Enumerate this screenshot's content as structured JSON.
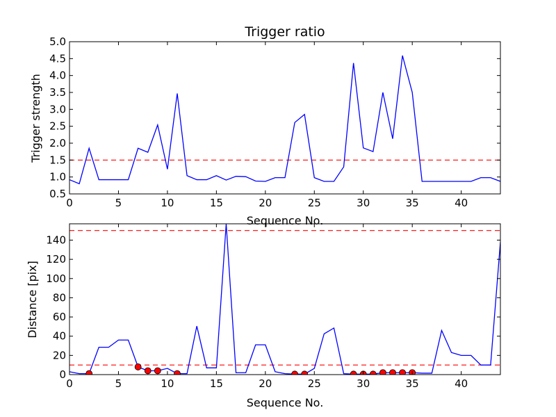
{
  "chart_data": [
    {
      "type": "line",
      "title": "Trigger ratio",
      "xlabel": "Sequence No.",
      "ylabel": "Trigger strength",
      "xlim": [
        0,
        44
      ],
      "ylim": [
        0.5,
        5.0
      ],
      "xticks": [
        "0",
        "5",
        "10",
        "15",
        "20",
        "25",
        "30",
        "35",
        "40"
      ],
      "yticks": [
        "0.5",
        "1.0",
        "1.5",
        "2.0",
        "2.5",
        "3.0",
        "3.5",
        "4.0",
        "4.5",
        "5.0"
      ],
      "grid": false,
      "series": [
        {
          "color": "#0000ff",
          "x": [
            0,
            1,
            2,
            3,
            4,
            5,
            6,
            7,
            8,
            9,
            10,
            11,
            12,
            13,
            14,
            15,
            16,
            17,
            18,
            19,
            20,
            21,
            22,
            23,
            24,
            25,
            26,
            27,
            28,
            29,
            30,
            31,
            32,
            33,
            34,
            35,
            36,
            37,
            38,
            39,
            40,
            41,
            42,
            43,
            44
          ],
          "values": [
            0.92,
            0.8,
            1.85,
            0.92,
            0.92,
            0.92,
            0.92,
            1.85,
            1.73,
            2.54,
            1.23,
            3.47,
            1.04,
            0.92,
            0.92,
            1.04,
            0.91,
            1.02,
            1.01,
            0.88,
            0.87,
            0.98,
            0.98,
            2.61,
            2.85,
            0.98,
            0.87,
            0.87,
            1.3,
            4.37,
            1.86,
            1.75,
            3.5,
            2.13,
            4.59,
            3.5,
            0.87,
            0.87,
            0.87,
            0.87,
            0.87,
            0.87,
            0.98,
            0.98,
            0.87
          ]
        }
      ],
      "threshold": {
        "value": 1.5,
        "color": "#ff0000",
        "style": "dashed"
      }
    },
    {
      "type": "line",
      "title": "",
      "xlabel": "Sequence No.",
      "ylabel": "Distance [pix]",
      "xlim": [
        0,
        44
      ],
      "ylim": [
        0,
        157
      ],
      "xticks": [
        "0",
        "5",
        "10",
        "15",
        "20",
        "25",
        "30",
        "35",
        "40"
      ],
      "yticks": [
        "0",
        "20",
        "40",
        "60",
        "80",
        "100",
        "120",
        "140"
      ],
      "grid": false,
      "series": [
        {
          "color": "#0000ff",
          "x": [
            0,
            1,
            2,
            3,
            4,
            5,
            6,
            7,
            8,
            9,
            10,
            11,
            12,
            13,
            14,
            15,
            16,
            17,
            18,
            19,
            20,
            21,
            22,
            23,
            24,
            25,
            26,
            27,
            28,
            29,
            30,
            31,
            32,
            33,
            34,
            35,
            36,
            37,
            38,
            39,
            40,
            41,
            42,
            43,
            44
          ],
          "values": [
            3,
            1,
            1,
            28.5,
            28.5,
            36,
            36,
            8,
            4,
            4,
            6.5,
            1,
            1,
            50.5,
            7,
            7,
            157,
            2,
            2,
            31,
            31,
            3,
            1,
            0.5,
            0.5,
            6.5,
            42.5,
            48.5,
            1,
            0.5,
            0.5,
            0.5,
            2,
            2,
            2,
            2,
            1.5,
            1.5,
            46,
            23,
            20,
            20,
            10,
            10,
            138
          ]
        }
      ],
      "markers": {
        "color": "#ff0000",
        "x": [
          2,
          7,
          8,
          9,
          11,
          23,
          24,
          29,
          30,
          31,
          32,
          33,
          34,
          35
        ],
        "values": [
          1,
          8,
          4,
          4,
          1,
          0.5,
          0.5,
          0.5,
          0.5,
          0.5,
          2,
          2,
          2,
          2
        ]
      },
      "thresholds": [
        {
          "value": 150,
          "color": "#ff0000",
          "style": "dashed"
        },
        {
          "value": 10,
          "color": "#ff0000",
          "style": "dashed"
        }
      ]
    }
  ]
}
